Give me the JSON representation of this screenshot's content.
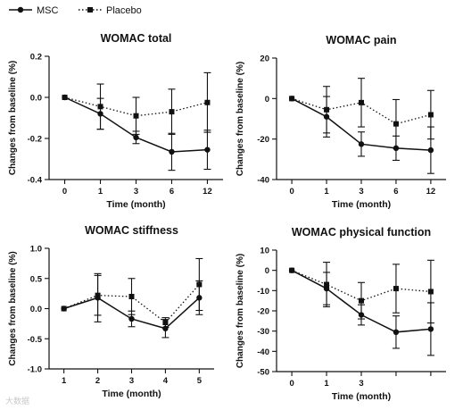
{
  "legend": [
    {
      "label": "MSC",
      "marker": "circle",
      "line": "solid"
    },
    {
      "label": "Placebo",
      "marker": "square",
      "line": "dotted"
    }
  ],
  "colors": {
    "line": "#111111",
    "background": "#ffffff",
    "watermark": "#c8c8c8"
  },
  "watermark": "大数据",
  "chart_data": [
    {
      "type": "line",
      "title": "WOMAC total",
      "xlabel": "Time (month)",
      "ylabel": "Changes from baseline (%)",
      "categories": [
        "0",
        "1",
        "3",
        "6",
        "12"
      ],
      "ylim": [
        -0.4,
        0.2
      ],
      "yticks": [
        "0.2",
        "0.0",
        "-0.2",
        "-0.4"
      ],
      "ytick_values": [
        0.2,
        0.0,
        -0.2,
        -0.4
      ],
      "series": [
        {
          "name": "MSC",
          "values": [
            0.0,
            -0.08,
            -0.195,
            -0.265,
            -0.255
          ],
          "err_low": [
            0,
            0.075,
            0.03,
            0.09,
            0.095
          ],
          "err_high": [
            0,
            0.075,
            0.03,
            0.09,
            0.095
          ]
        },
        {
          "name": "Placebo",
          "values": [
            0.0,
            -0.045,
            -0.09,
            -0.07,
            -0.025
          ],
          "err_low": [
            0,
            0.11,
            0.09,
            0.11,
            0.145
          ],
          "err_high": [
            0,
            0.11,
            0.09,
            0.11,
            0.145
          ]
        }
      ]
    },
    {
      "type": "line",
      "title": "WOMAC pain",
      "xlabel": "Time (month)",
      "ylabel": "Changes from baseline (%)",
      "categories": [
        "0",
        "1",
        "3",
        "6",
        "12"
      ],
      "ylim": [
        -40,
        20
      ],
      "yticks": [
        "20",
        "0",
        "-20",
        "-40"
      ],
      "ytick_values": [
        20,
        0,
        -20,
        -40
      ],
      "series": [
        {
          "name": "MSC",
          "values": [
            0,
            -9,
            -22.5,
            -24.5,
            -25.5
          ],
          "err_low": [
            0,
            10,
            6,
            6,
            11.5
          ],
          "err_high": [
            0,
            10,
            6,
            6,
            11.5
          ]
        },
        {
          "name": "Placebo",
          "values": [
            0,
            -5.5,
            -2,
            -12.5,
            -8
          ],
          "err_low": [
            0,
            11.5,
            12,
            12,
            12
          ],
          "err_high": [
            0,
            11.5,
            12,
            12,
            12
          ]
        }
      ]
    },
    {
      "type": "line",
      "title": "WOMAC stiffness",
      "xlabel": "Time (month)",
      "ylabel": "Changes from baseline (%)",
      "categories": [
        "1",
        "2",
        "3",
        "4",
        "5"
      ],
      "ylim": [
        -1.0,
        1.0
      ],
      "yticks": [
        "1.0",
        "0.5",
        "0.0",
        "-0.5",
        "-1.0"
      ],
      "ytick_values": [
        1.0,
        0.5,
        0.0,
        -0.5,
        -1.0
      ],
      "series": [
        {
          "name": "MSC",
          "values": [
            0.0,
            0.18,
            -0.17,
            -0.33,
            0.18
          ],
          "err_low": [
            0,
            0.4,
            0.13,
            0.15,
            0.28
          ],
          "err_high": [
            0,
            0.4,
            0.13,
            0.15,
            0.28
          ]
        },
        {
          "name": "Placebo",
          "values": [
            0.0,
            0.22,
            0.2,
            -0.23,
            0.4
          ],
          "err_low": [
            0,
            0.33,
            0.3,
            0.08,
            0.43
          ],
          "err_high": [
            0,
            0.33,
            0.3,
            0.08,
            0.43
          ]
        }
      ]
    },
    {
      "type": "line",
      "title": "WOMAC physical function",
      "xlabel": "Time (month)",
      "ylabel": "Changes from baseline (%)",
      "categories": [
        "0",
        "1",
        "3",
        "",
        ""
      ],
      "ylim": [
        -50,
        10
      ],
      "yticks": [
        "10",
        "0",
        "-10",
        "-20",
        "-30",
        "-40",
        "-50"
      ],
      "ytick_values": [
        10,
        0,
        -10,
        -20,
        -30,
        -40,
        -50
      ],
      "series": [
        {
          "name": "MSC",
          "values": [
            0,
            -9,
            -22,
            -30.5,
            -29
          ],
          "err_low": [
            0,
            8,
            5,
            8,
            13
          ],
          "err_high": [
            0,
            8,
            5,
            8,
            13
          ]
        },
        {
          "name": "Placebo",
          "values": [
            0,
            -7,
            -15,
            -9,
            -10.5
          ],
          "err_low": [
            0,
            11,
            9,
            12,
            15.5
          ],
          "err_high": [
            0,
            11,
            9,
            12,
            15.5
          ]
        }
      ]
    }
  ]
}
